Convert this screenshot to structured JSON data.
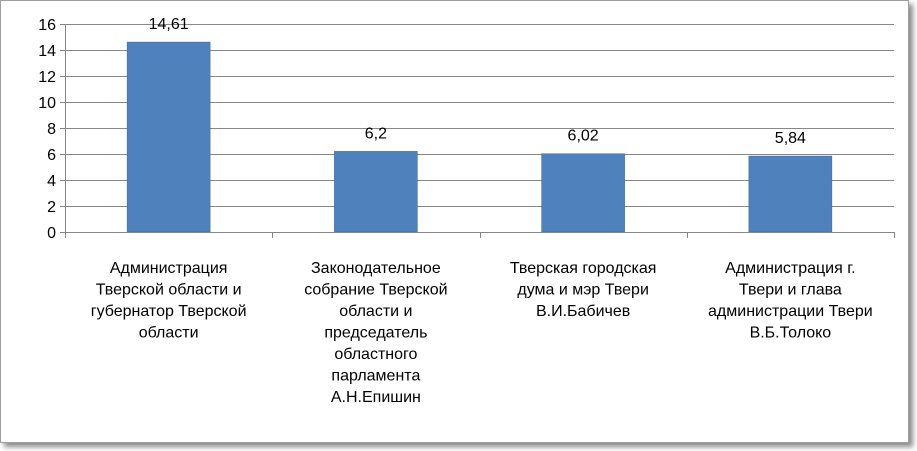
{
  "chart_data": {
    "type": "bar",
    "categories": [
      [
        "Администрация",
        "Тверской области и",
        "губернатор Тверской",
        "области"
      ],
      [
        "Законодательное",
        "собрание Тверской",
        "области и",
        "председатель",
        "областного",
        "парламента",
        "А.Н.Епишин"
      ],
      [
        "Тверская городская",
        "дума и мэр Твери",
        "В.И.Бабичев"
      ],
      [
        "Администрация г.",
        "Твери и глава",
        "администрации Твери",
        "В.Б.Толоко"
      ]
    ],
    "values": [
      14.61,
      6.2,
      6.02,
      5.84
    ],
    "value_labels": [
      "14,61",
      "6,2",
      "6,02",
      "5,84"
    ],
    "ylim": [
      0,
      16
    ],
    "yticks": [
      0,
      2,
      4,
      6,
      8,
      10,
      12,
      14,
      16
    ],
    "ytick_labels": [
      "0",
      "2",
      "4",
      "6",
      "8",
      "10",
      "12",
      "14",
      "16"
    ],
    "grid": true,
    "legend": "none",
    "title": "",
    "xlabel": "",
    "ylabel": "",
    "colors": {
      "bar": "#4f81bd",
      "bar_edge": "#3a6496",
      "grid": "#878787",
      "axis": "#878787"
    }
  }
}
